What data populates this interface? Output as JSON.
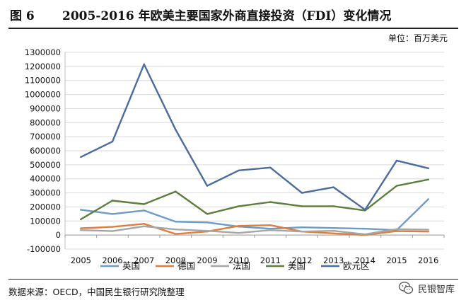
{
  "header": {
    "figure_number": "图 6",
    "title": "2005-2016 年欧美主要国家外商直接投资（FDI）变化情况",
    "unit": "单位：百万美元"
  },
  "footer": {
    "source": "数据来源：OECD，中国民生银行研究院整理",
    "brand": "民银智库"
  },
  "chart_data": {
    "type": "line",
    "title": "2005-2016 年欧美主要国家外商直接投资（FDI）变化情况",
    "xlabel": "",
    "ylabel": "",
    "unit": "百万美元",
    "categories": [
      "2005",
      "2006",
      "2007",
      "2008",
      "2009",
      "2010",
      "2011",
      "2012",
      "2013",
      "2014",
      "2015",
      "2016"
    ],
    "ylim": [
      -100000,
      1300000
    ],
    "yticks": [
      -100000,
      0,
      100000,
      200000,
      300000,
      400000,
      500000,
      600000,
      700000,
      800000,
      900000,
      1000000,
      1100000,
      1200000,
      1300000
    ],
    "ytick_labels": [
      "-100000",
      "0",
      "100000",
      "200000",
      "300000",
      "400000",
      "500000",
      "600000",
      "700000",
      "800000",
      "900000",
      "1000000",
      "1100000",
      "1200000",
      "1300000"
    ],
    "grid": "horizontal",
    "legend_position": "bottom",
    "series": [
      {
        "name": "英国",
        "color": "#6b9bc8",
        "values": [
          180000,
          150000,
          175000,
          95000,
          90000,
          60000,
          45000,
          55000,
          50000,
          45000,
          35000,
          255000
        ]
      },
      {
        "name": "德国",
        "color": "#e07d3c",
        "values": [
          48000,
          58000,
          80000,
          8000,
          25000,
          65000,
          70000,
          25000,
          12000,
          0,
          28000,
          25000
        ]
      },
      {
        "name": "法国",
        "color": "#a6a6a6",
        "values": [
          35000,
          28000,
          62000,
          40000,
          30000,
          15000,
          35000,
          25000,
          30000,
          5000,
          42000,
          38000
        ]
      },
      {
        "name": "美国",
        "color": "#5d7f3e",
        "values": [
          112000,
          245000,
          220000,
          310000,
          150000,
          205000,
          235000,
          205000,
          205000,
          175000,
          350000,
          395000
        ]
      },
      {
        "name": "欧元区",
        "color": "#4a6b9c",
        "values": [
          555000,
          665000,
          1215000,
          750000,
          350000,
          460000,
          480000,
          300000,
          340000,
          180000,
          530000,
          475000
        ]
      }
    ]
  }
}
